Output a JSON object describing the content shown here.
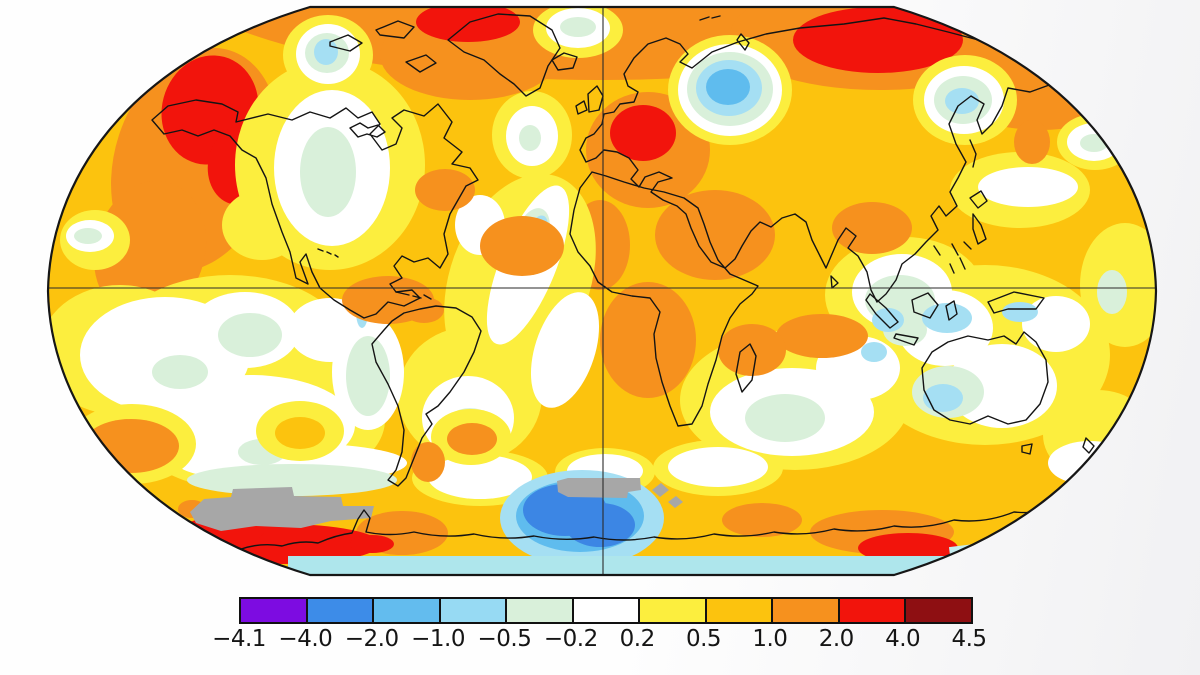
{
  "page": {
    "background_color": "#fefefe",
    "description": "Global surface temperature anomaly world map (Robinson projection) with horizontal color-scale legend"
  },
  "map": {
    "projection": "Robinson",
    "gridlines": [
      "equator",
      "central meridian"
    ],
    "outline_color": "#161616",
    "coastline_color": "#141414",
    "no_data_color": "#a7a7a7",
    "antarctic_coastal_water_color": "#aee6ec"
  },
  "chart_data": {
    "type": "heatmap",
    "subtype": "filled-contour-temperature-anomaly-world-map",
    "title": "",
    "units": "temperature anomaly",
    "legend_position": "bottom-center",
    "colorbar": {
      "orientation": "horizontal",
      "tick_labels": [
        "−4.1",
        "−4.0",
        "−2.0",
        "−1.0",
        "−0.5",
        "−0.2",
        "0.2",
        "0.5",
        "1.0",
        "2.0",
        "4.0",
        "4.5"
      ],
      "boundaries": [
        -4.1,
        -4.0,
        -2.0,
        -1.0,
        -0.5,
        -0.2,
        0.2,
        0.5,
        1.0,
        2.0,
        4.0,
        4.5
      ],
      "segment_colors": [
        "#7d0ce1",
        "#3d8ce8",
        "#63bcee",
        "#97daf3",
        "#d9f0da",
        "#ffffff",
        "#fcee3e",
        "#fcc30e",
        "#f6911e",
        "#f2140c",
        "#8e0f12"
      ],
      "border_color": "#111111",
      "tick_color": "#151515"
    },
    "regional_anomalies": [
      {
        "region": "Alaska / northwestern North America",
        "anomaly": "2.0 to 4.0"
      },
      {
        "region": "Northwest Greenland / Canadian Arctic",
        "anomaly": "2.0 to 4.0"
      },
      {
        "region": "Central Europe",
        "anomaly": "2.0 to 4.0"
      },
      {
        "region": "Northern Siberia",
        "anomaly": "2.0 to 4.0"
      },
      {
        "region": "Arctic Ocean band",
        "anomaly": "1.0 to 2.0"
      },
      {
        "region": "Barents Sea / northern Scandinavia",
        "anomaly": "-2.0 to -1.0"
      },
      {
        "region": "Sea of Okhotsk / Kamchatka",
        "anomaly": "-1.0 to -0.5"
      },
      {
        "region": "Central North America",
        "anomaly": "-0.2 to 0.2"
      },
      {
        "region": "Eastern equatorial Pacific",
        "anomaly": "-0.2 to 0.2"
      },
      {
        "region": "Central Atlantic cool tongue",
        "anomaly": "-0.5 to -0.2"
      },
      {
        "region": "North Africa / Middle East",
        "anomaly": "1.0 to 2.0"
      },
      {
        "region": "Southern Africa and Madagascar",
        "anomaly": "1.0 to 2.0"
      },
      {
        "region": "Waters around Australia",
        "anomaly": "-0.5 to 0.2"
      },
      {
        "region": "Ross Sea sector of Antarctica",
        "anomaly": "-4.0 to -2.0"
      },
      {
        "region": "West Antarctica",
        "anomaly": "2.0 to 4.0"
      },
      {
        "region": "East Antarctic coast (southeast sector)",
        "anomaly": "2.0 to 4.0"
      },
      {
        "region": "Antarctic interior patches",
        "anomaly": "no data (gray)"
      },
      {
        "region": "Most mid-latitude oceans",
        "anomaly": "0.2 to 1.0"
      }
    ]
  }
}
